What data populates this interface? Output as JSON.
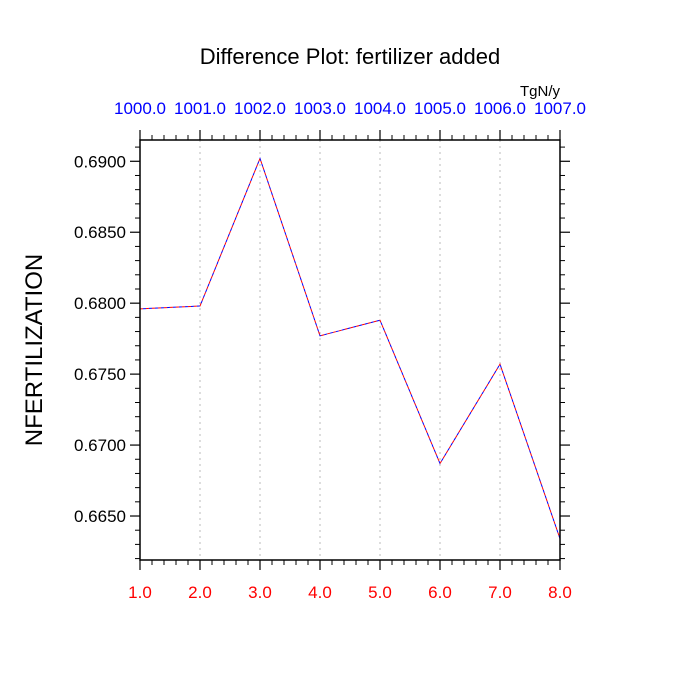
{
  "chart_data": {
    "type": "line",
    "title": "Difference Plot: fertilizer added",
    "units": "TgN/y",
    "ylabel": "NFERTILIZATION",
    "xlabel": "",
    "x": [
      1.0,
      2.0,
      3.0,
      4.0,
      5.0,
      6.0,
      7.0,
      8.0
    ],
    "x_tick_labels_bottom": [
      "1.0",
      "2.0",
      "3.0",
      "4.0",
      "5.0",
      "6.0",
      "7.0",
      "8.0"
    ],
    "x_tick_labels_top": [
      "1000.0",
      "1001.0",
      "1002.0",
      "1003.0",
      "1004.0",
      "1005.0",
      "1006.0",
      "1007.0"
    ],
    "xlim": [
      1.0,
      8.0
    ],
    "ylim": [
      0.6619,
      0.6915
    ],
    "y_ticks": [
      0.665,
      0.67,
      0.675,
      0.68,
      0.685,
      0.69
    ],
    "y_tick_labels": [
      "0.6650",
      "0.6700",
      "0.6750",
      "0.6800",
      "0.6850",
      "0.6900"
    ],
    "series": [
      {
        "values": [
          0.6796,
          0.6798,
          0.6902,
          0.6777,
          0.6788,
          0.6687,
          0.6757,
          0.6634
        ]
      }
    ],
    "grid": "vertical dotted",
    "colors": {
      "bottom_ticks": "#ff0000",
      "top_ticks": "#0000ff",
      "line_primary": "#ff0000",
      "line_secondary": "#0000ff",
      "grid": "#bbbbbb"
    }
  }
}
